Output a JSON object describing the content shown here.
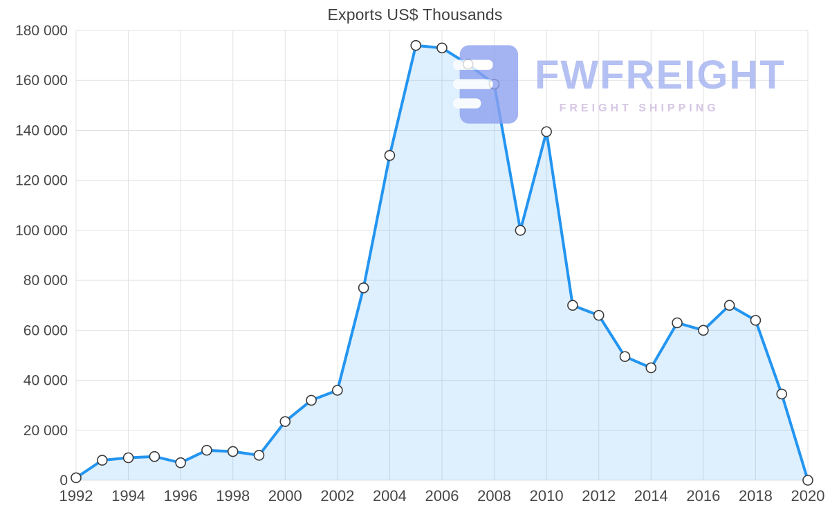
{
  "page": {
    "title": "Exports US$ Thousands"
  },
  "chart_data": {
    "type": "area",
    "title": "Exports US$ Thousands",
    "x": [
      1992,
      1993,
      1994,
      1995,
      1996,
      1997,
      1998,
      1999,
      2000,
      2001,
      2002,
      2003,
      2004,
      2005,
      2006,
      2007,
      2008,
      2009,
      2010,
      2011,
      2012,
      2013,
      2014,
      2015,
      2016,
      2017,
      2018,
      2019,
      2020
    ],
    "values": [
      1000,
      8000,
      9000,
      9500,
      7000,
      12000,
      11500,
      10000,
      23500,
      32000,
      36000,
      77000,
      130000,
      174000,
      173000,
      166500,
      158500,
      100000,
      139500,
      70000,
      66000,
      49500,
      45000,
      63000,
      60000,
      70000,
      64000,
      34500,
      0
    ],
    "x_ticks": [
      1992,
      1994,
      1996,
      1998,
      2000,
      2002,
      2004,
      2006,
      2008,
      2010,
      2012,
      2014,
      2016,
      2018,
      2020
    ],
    "y_ticks": [
      0,
      20000,
      40000,
      60000,
      80000,
      100000,
      120000,
      140000,
      160000,
      180000
    ],
    "ylim": [
      0,
      180000
    ],
    "xlim": [
      1992,
      2020
    ],
    "xlabel": "",
    "ylabel": "",
    "grid": true,
    "legend": "none",
    "colors": {
      "line": "#2395f1",
      "fill": "rgba(35,149,241,0.15)",
      "marker_fill": "#ffffff",
      "marker_stroke": "#3a3a3a",
      "grid": "#e2e2e2",
      "axis_text": "#474747"
    }
  },
  "watermark": {
    "brand": "FWFREIGHT",
    "tagline": "FREIGHT SHIPPING",
    "logo_color": "#8ea1ef"
  }
}
